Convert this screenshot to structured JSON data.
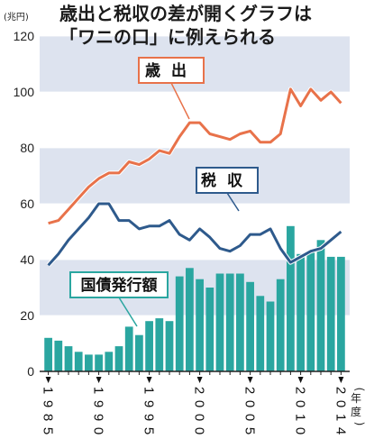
{
  "unit_label": "(兆円)",
  "title_line1": "歳出と税収の差が開くグラフは",
  "title_line2": "「ワニの口」に例えられる",
  "x_unit": [
    "(",
    "年",
    "度",
    ")"
  ],
  "colors": {
    "expenditure": "#e8724a",
    "tax": "#2e5a8c",
    "bonds": "#2aa6a0",
    "band": "#dde3ef"
  },
  "chart_data": {
    "type": "bar+line",
    "x": [
      1985,
      1986,
      1987,
      1988,
      1989,
      1990,
      1991,
      1992,
      1993,
      1994,
      1995,
      1996,
      1997,
      1998,
      1999,
      2000,
      2001,
      2002,
      2003,
      2004,
      2005,
      2006,
      2007,
      2008,
      2009,
      2010,
      2011,
      2012,
      2013,
      2014
    ],
    "x_tick_labels": [
      {
        "year": 1985,
        "chars": [
          "1",
          "9",
          "8",
          "5"
        ]
      },
      {
        "year": 1990,
        "chars": [
          "1",
          "9",
          "9",
          "0"
        ]
      },
      {
        "year": 1995,
        "chars": [
          "1",
          "9",
          "9",
          "5"
        ]
      },
      {
        "year": 2000,
        "chars": [
          "2",
          "0",
          "0",
          "0"
        ]
      },
      {
        "year": 2005,
        "chars": [
          "2",
          "0",
          "0",
          "5"
        ]
      },
      {
        "year": 2010,
        "chars": [
          "2",
          "0",
          "1",
          "0"
        ]
      },
      {
        "year": 2014,
        "chars": [
          "2",
          "0",
          "1",
          "4"
        ]
      }
    ],
    "y_ticks": [
      "0",
      "20",
      "40",
      "60",
      "80",
      "100",
      "120"
    ],
    "ylim": [
      0,
      120
    ],
    "series": [
      {
        "name": "歳出",
        "kind": "line",
        "values": [
          53,
          54,
          58,
          62,
          66,
          69,
          71,
          71,
          75,
          74,
          76,
          79,
          78,
          84,
          89,
          89,
          85,
          84,
          83,
          85,
          86,
          82,
          82,
          85,
          101,
          95,
          101,
          97,
          100,
          96
        ]
      },
      {
        "name": "税収",
        "kind": "line",
        "values": [
          38,
          42,
          47,
          51,
          55,
          60,
          60,
          54,
          54,
          51,
          52,
          52,
          54,
          49,
          47,
          51,
          48,
          44,
          43,
          45,
          49,
          49,
          51,
          44,
          39,
          41,
          43,
          44,
          47,
          50
        ]
      },
      {
        "name": "国債発行額",
        "kind": "bar",
        "values": [
          12,
          11,
          9,
          7,
          6,
          6,
          7,
          9,
          16,
          13,
          18,
          19,
          18,
          34,
          37,
          33,
          30,
          35,
          35,
          35,
          32,
          27,
          25,
          33,
          52,
          42,
          43,
          47,
          41,
          41
        ]
      }
    ]
  }
}
